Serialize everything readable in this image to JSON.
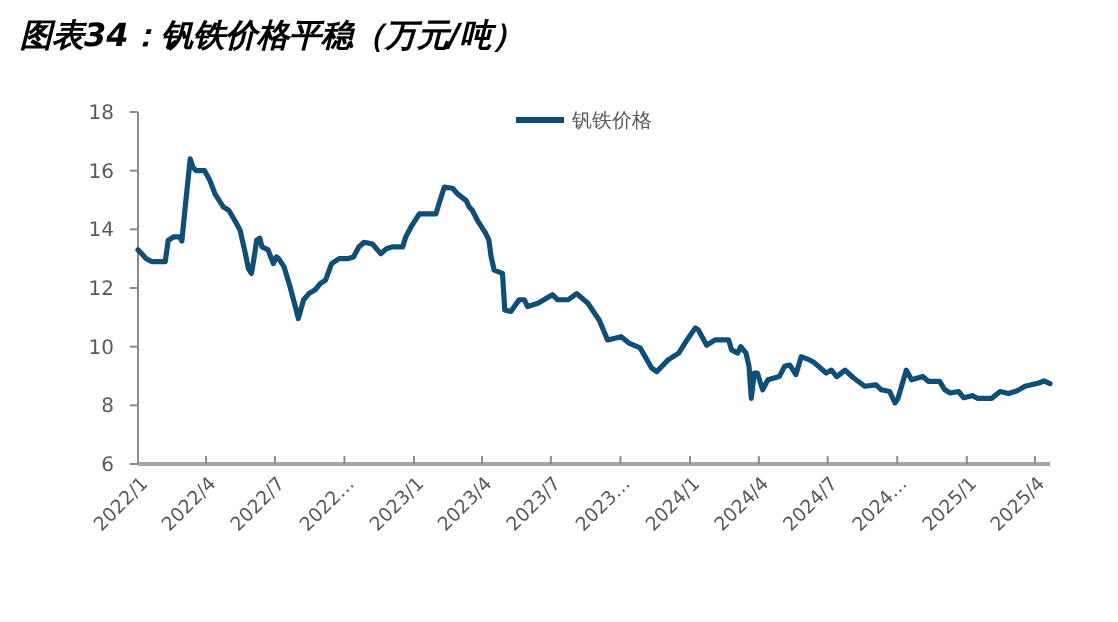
{
  "chart_data": {
    "type": "line",
    "title": "图表34：钒铁价格平稳（万元/吨）",
    "x": [
      "2022-01-01",
      "2022-01-12",
      "2022-01-19",
      "2022-02-06",
      "2022-02-10",
      "2022-02-17",
      "2022-02-25",
      "2022-02-28",
      "2022-03-04",
      "2022-03-11",
      "2022-03-15",
      "2022-03-19",
      "2022-03-30",
      "2022-04-06",
      "2022-04-13",
      "2022-04-24",
      "2022-05-01",
      "2022-05-09",
      "2022-05-16",
      "2022-05-23",
      "2022-05-27",
      "2022-05-31",
      "2022-06-03",
      "2022-06-07",
      "2022-06-11",
      "2022-06-14",
      "2022-06-22",
      "2022-06-29",
      "2022-07-03",
      "2022-07-06",
      "2022-07-13",
      "2022-07-21",
      "2022-07-28",
      "2022-08-01",
      "2022-08-08",
      "2022-08-15",
      "2022-08-23",
      "2022-08-30",
      "2022-09-06",
      "2022-09-14",
      "2022-09-24",
      "2022-10-05",
      "2022-10-13",
      "2022-10-20",
      "2022-10-27",
      "2022-11-07",
      "2022-11-18",
      "2022-11-26",
      "2022-12-03",
      "2022-12-17",
      "2022-12-21",
      "2022-12-28",
      "2023-01-08",
      "2023-01-30",
      "2023-02-03",
      "2023-02-10",
      "2023-02-21",
      "2023-02-28",
      "2023-03-11",
      "2023-03-15",
      "2023-03-19",
      "2023-03-26",
      "2023-04-06",
      "2023-04-10",
      "2023-04-13",
      "2023-04-17",
      "2023-04-28",
      "2023-05-01",
      "2023-05-09",
      "2023-05-20",
      "2023-05-27",
      "2023-05-31",
      "2023-06-14",
      "2023-07-03",
      "2023-07-10",
      "2023-07-24",
      "2023-08-04",
      "2023-08-19",
      "2023-09-03",
      "2023-09-14",
      "2023-10-02",
      "2023-10-13",
      "2023-10-27",
      "2023-11-11",
      "2023-11-18",
      "2023-12-03",
      "2023-12-17",
      "2023-12-28",
      "2024-01-08",
      "2024-01-12",
      "2024-01-23",
      "2024-02-03",
      "2024-02-21",
      "2024-02-25",
      "2024-03-04",
      "2024-03-08",
      "2024-03-15",
      "2024-03-19",
      "2024-03-22",
      "2024-03-26",
      "2024-03-30",
      "2024-04-06",
      "2024-04-13",
      "2024-04-28",
      "2024-05-05",
      "2024-05-12",
      "2024-05-20",
      "2024-05-27",
      "2024-06-07",
      "2024-06-14",
      "2024-06-29",
      "2024-07-06",
      "2024-07-13",
      "2024-07-24",
      "2024-08-04",
      "2024-08-19",
      "2024-09-03",
      "2024-09-10",
      "2024-09-21",
      "2024-09-28",
      "2024-10-02",
      "2024-10-13",
      "2024-10-20",
      "2024-11-04",
      "2024-11-11",
      "2024-11-26",
      "2024-12-03",
      "2024-12-10",
      "2024-12-21",
      "2024-12-28",
      "2025-01-08",
      "2025-01-15",
      "2025-02-03",
      "2025-02-14",
      "2025-02-25",
      "2025-03-08",
      "2025-03-19",
      "2025-04-06",
      "2025-04-13",
      "2025-04-21"
    ],
    "series": [
      {
        "name": "钒铁价格",
        "color": "#0f4f76",
        "values": [
          13.3,
          13.0,
          12.9,
          12.9,
          13.63,
          13.74,
          13.74,
          13.6,
          14.65,
          16.4,
          16.1,
          16.0,
          16.0,
          15.67,
          15.2,
          14.76,
          14.65,
          14.3,
          13.97,
          13.17,
          12.66,
          12.5,
          12.95,
          13.63,
          13.7,
          13.4,
          13.3,
          12.83,
          13.06,
          13.0,
          12.73,
          12.05,
          11.37,
          10.96,
          11.6,
          11.81,
          11.93,
          12.15,
          12.27,
          12.83,
          13.0,
          13.0,
          13.06,
          13.4,
          13.56,
          13.5,
          13.17,
          13.35,
          13.4,
          13.4,
          13.74,
          14.08,
          14.53,
          14.53,
          14.87,
          15.44,
          15.4,
          15.2,
          14.98,
          14.76,
          14.65,
          14.3,
          13.85,
          13.63,
          13.06,
          12.61,
          12.5,
          11.25,
          11.2,
          11.6,
          11.6,
          11.37,
          11.48,
          11.77,
          11.6,
          11.6,
          11.81,
          11.48,
          10.9,
          10.23,
          10.34,
          10.11,
          9.96,
          9.28,
          9.15,
          9.55,
          9.78,
          10.23,
          10.64,
          10.57,
          10.05,
          10.23,
          10.23,
          9.89,
          9.78,
          10.0,
          9.78,
          9.33,
          8.24,
          9.1,
          9.1,
          8.53,
          8.87,
          8.98,
          9.33,
          9.37,
          9.05,
          9.66,
          9.55,
          9.44,
          9.1,
          9.2,
          8.98,
          9.2,
          8.94,
          8.65,
          8.7,
          8.53,
          8.47,
          8.08,
          8.24,
          9.2,
          8.87,
          8.98,
          8.82,
          8.82,
          8.53,
          8.42,
          8.47,
          8.26,
          8.33,
          8.24,
          8.24,
          8.47,
          8.4,
          8.49,
          8.65,
          8.76,
          8.83,
          8.74
        ]
      }
    ],
    "xlim": [
      "2022-01-01",
      "2025-04-21"
    ],
    "xticks": [
      {
        "value": "2022-01-01",
        "label": "2022/1"
      },
      {
        "value": "2022-04-01",
        "label": "2022/4"
      },
      {
        "value": "2022-07-01",
        "label": "2022/7"
      },
      {
        "value": "2022-10-01",
        "label": "2022…"
      },
      {
        "value": "2023-01-01",
        "label": "2023/1"
      },
      {
        "value": "2023-04-01",
        "label": "2023/4"
      },
      {
        "value": "2023-07-01",
        "label": "2023/7"
      },
      {
        "value": "2023-10-01",
        "label": "2023…"
      },
      {
        "value": "2024-01-01",
        "label": "2024/1"
      },
      {
        "value": "2024-04-01",
        "label": "2024/4"
      },
      {
        "value": "2024-07-01",
        "label": "2024/7"
      },
      {
        "value": "2024-10-01",
        "label": "2024…"
      },
      {
        "value": "2025-01-01",
        "label": "2025/1"
      },
      {
        "value": "2025-04-01",
        "label": "2025/4"
      }
    ],
    "ylim": [
      6,
      18
    ],
    "yticks": [
      6,
      8,
      10,
      12,
      14,
      16,
      18
    ],
    "grid": false,
    "legend": "top",
    "line_style": "solid",
    "marker": "none"
  }
}
